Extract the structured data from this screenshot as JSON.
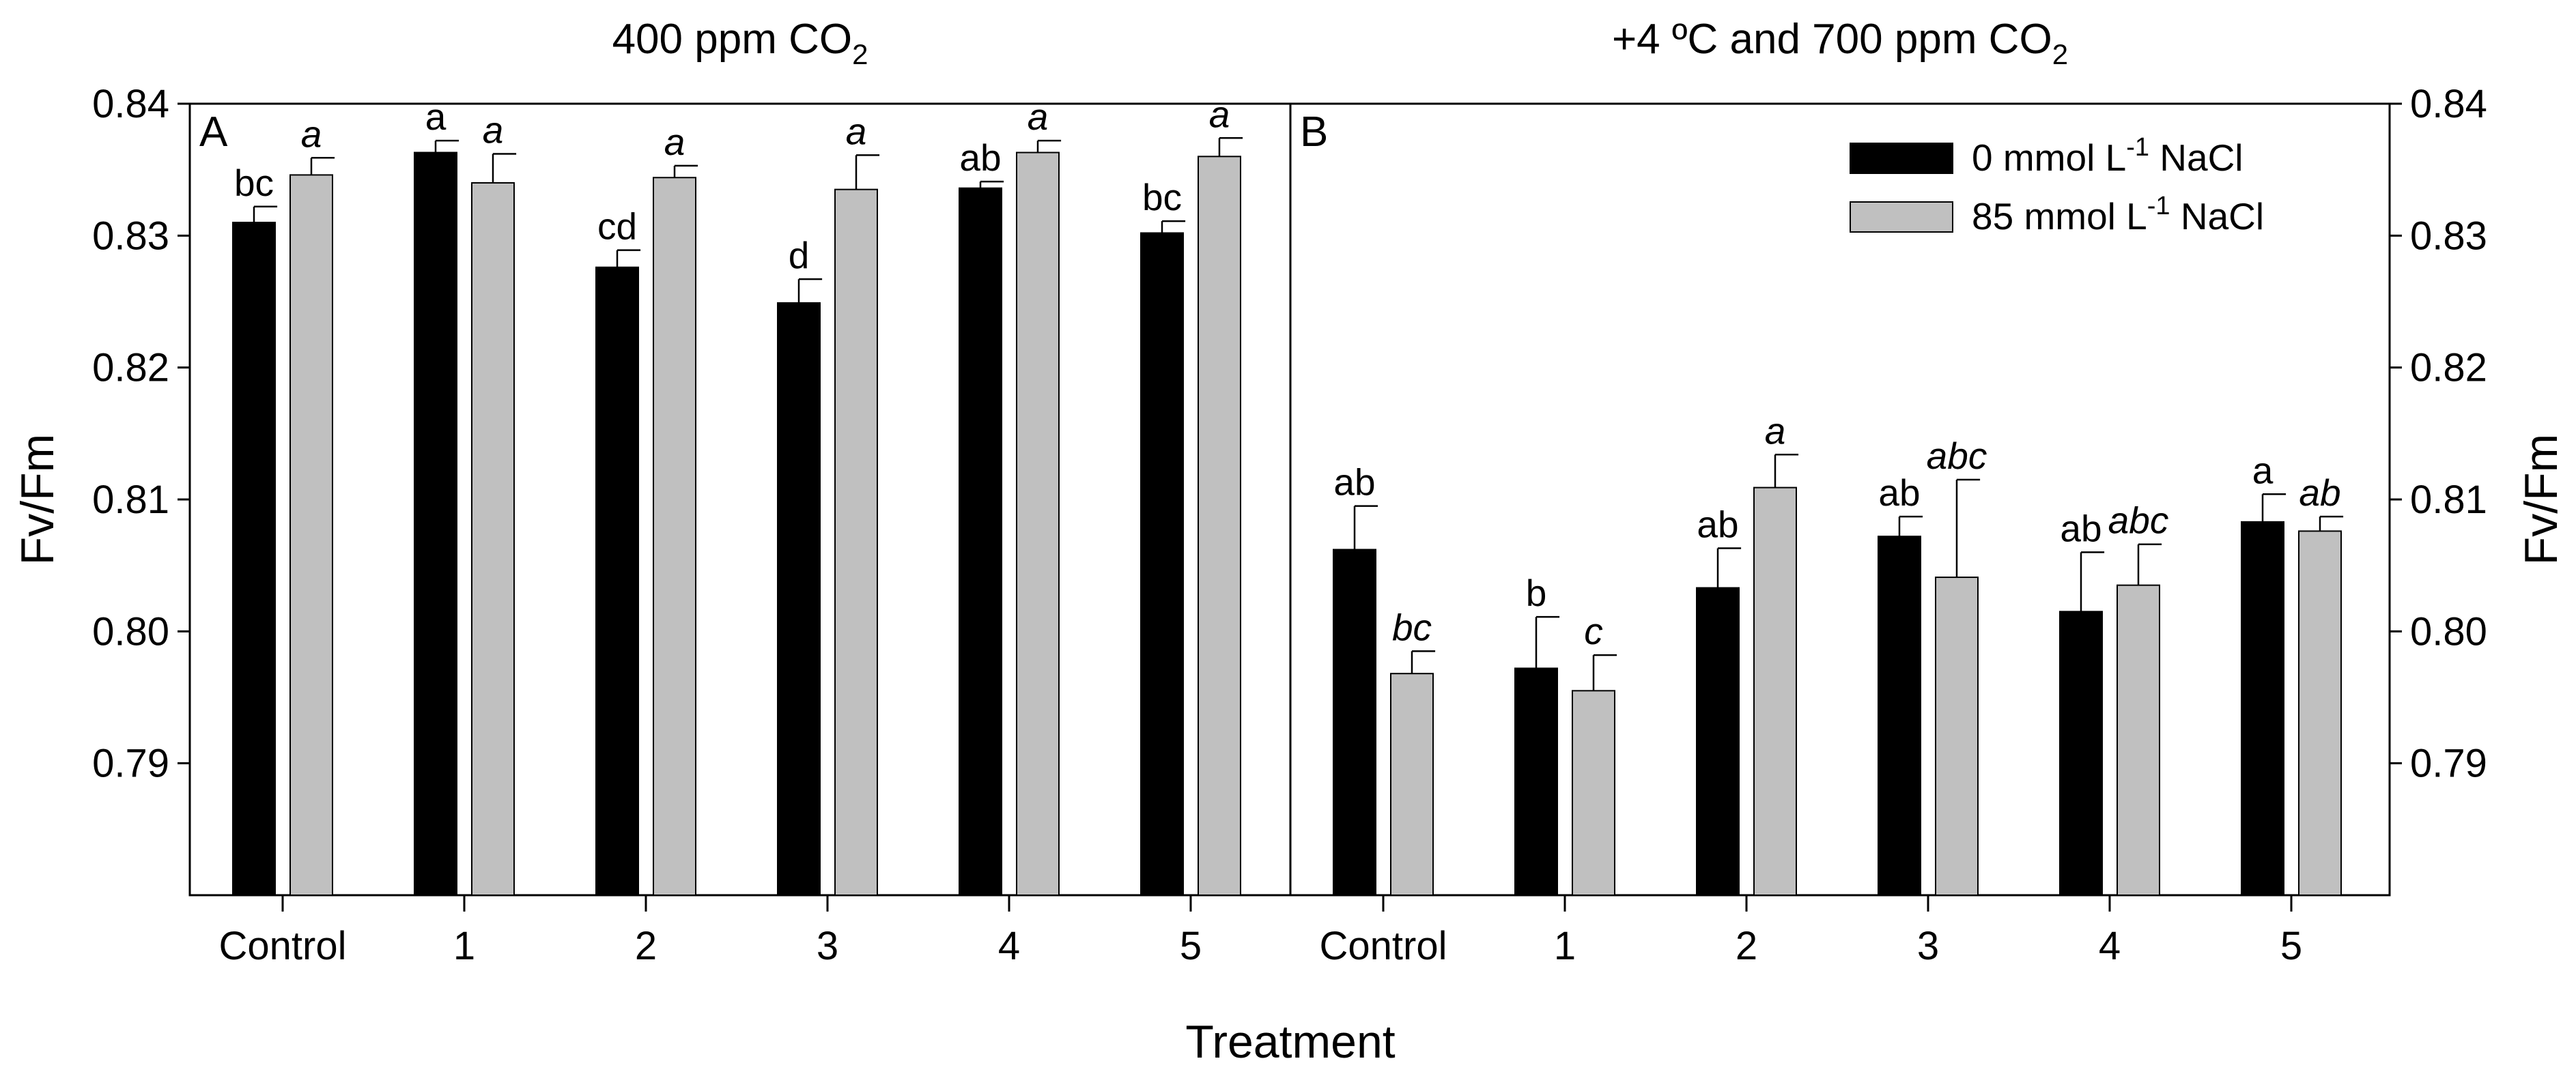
{
  "chart_data": {
    "type": "bar",
    "xlabel": "Treatment",
    "ylabel": "Fv/Fm",
    "ylim": [
      0.78,
      0.84
    ],
    "yticks": [
      "0.79",
      "0.80",
      "0.81",
      "0.82",
      "0.83",
      "0.84"
    ],
    "categories": [
      "Control",
      "1",
      "2",
      "3",
      "4",
      "5"
    ],
    "legend": {
      "position": "top-right of panel B",
      "entries": [
        {
          "pre": "0 mmol L",
          "sup": "-1",
          "post": " NaCl",
          "color": "#000000"
        },
        {
          "pre": "85 mmol L",
          "sup": "-1",
          "post": " NaCl",
          "color": "#c0c0c0"
        }
      ]
    },
    "panels": [
      {
        "label": "A",
        "title": {
          "pre": "400 ppm CO",
          "sub": "2",
          "post": ""
        },
        "series": [
          {
            "name": "0 mmol L-1 NaCl",
            "color": "#000000",
            "values": [
              0.831,
              0.8363,
              0.8276,
              0.8249,
              0.8336,
              0.8302
            ],
            "errors": [
              0.0012,
              0.0009,
              0.0013,
              0.0018,
              0.0005,
              0.0009
            ],
            "letters": [
              "bc",
              "a",
              "cd",
              "d",
              "ab",
              "bc"
            ]
          },
          {
            "name": "85 mmol L-1 NaCl",
            "color": "#c0c0c0",
            "values": [
              0.8346,
              0.834,
              0.8344,
              0.8335,
              0.8363,
              0.836
            ],
            "errors": [
              0.0013,
              0.0022,
              0.0009,
              0.0026,
              0.0009,
              0.0014
            ],
            "letters": [
              "a",
              "a",
              "a",
              "a",
              "a",
              "a"
            ]
          }
        ]
      },
      {
        "label": "B",
        "title": {
          "pre": "+4 ºC and 700 ppm CO",
          "sub": "2",
          "post": ""
        },
        "series": [
          {
            "name": "0 mmol L-1 NaCl",
            "color": "#000000",
            "values": [
              0.8062,
              0.7972,
              0.8033,
              0.8072,
              0.8015,
              0.8083
            ],
            "errors": [
              0.0033,
              0.0039,
              0.003,
              0.0015,
              0.0045,
              0.0021
            ],
            "letters": [
              "ab",
              "b",
              "ab",
              "ab",
              "ab",
              "a"
            ]
          },
          {
            "name": "85 mmol L-1 NaCl",
            "color": "#c0c0c0",
            "values": [
              0.7968,
              0.7955,
              0.8109,
              0.8041,
              0.8035,
              0.8076
            ],
            "errors": [
              0.0017,
              0.0027,
              0.0025,
              0.0074,
              0.0031,
              0.0011
            ],
            "letters": [
              "bc",
              "c",
              "a",
              "abc",
              "abc",
              "ab"
            ]
          }
        ]
      }
    ]
  }
}
